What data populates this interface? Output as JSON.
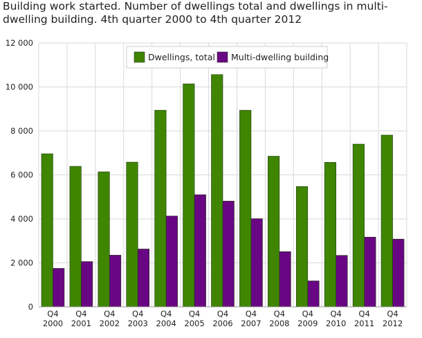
{
  "chart_data": {
    "type": "bar",
    "title": "Building work started. Number of dwellings total and dwellings in multi-dwelling building.  4th quarter 2000 to 4th quarter 2012",
    "categories": [
      [
        "Q4",
        "2000"
      ],
      [
        "Q4",
        "2001"
      ],
      [
        "Q4",
        "2002"
      ],
      [
        "Q4",
        "2003"
      ],
      [
        "Q4",
        "2004"
      ],
      [
        "Q4",
        "2005"
      ],
      [
        "Q4",
        "2006"
      ],
      [
        "Q4",
        "2007"
      ],
      [
        "Q4",
        "2008"
      ],
      [
        "Q4",
        "2009"
      ],
      [
        "Q4",
        "2010"
      ],
      [
        "Q4",
        "2011"
      ],
      [
        "Q4",
        "2012"
      ]
    ],
    "series": [
      {
        "name": "Dwellings, total",
        "color": "#3f8500",
        "values": [
          6960,
          6390,
          6140,
          6580,
          8940,
          10140,
          10560,
          8940,
          6850,
          5470,
          6570,
          7400,
          7810
        ]
      },
      {
        "name": "Multi-dwelling building",
        "color": "#690683",
        "values": [
          1750,
          2060,
          2350,
          2630,
          4130,
          5100,
          4810,
          4010,
          2510,
          1180,
          2340,
          3170,
          3080
        ]
      }
    ],
    "ylim": [
      0,
      12000
    ],
    "yticks": [
      "0",
      "2 000",
      "4 000",
      "6 000",
      "8 000",
      "10 000",
      "12 000"
    ],
    "grid": true,
    "legend": "top-center"
  }
}
